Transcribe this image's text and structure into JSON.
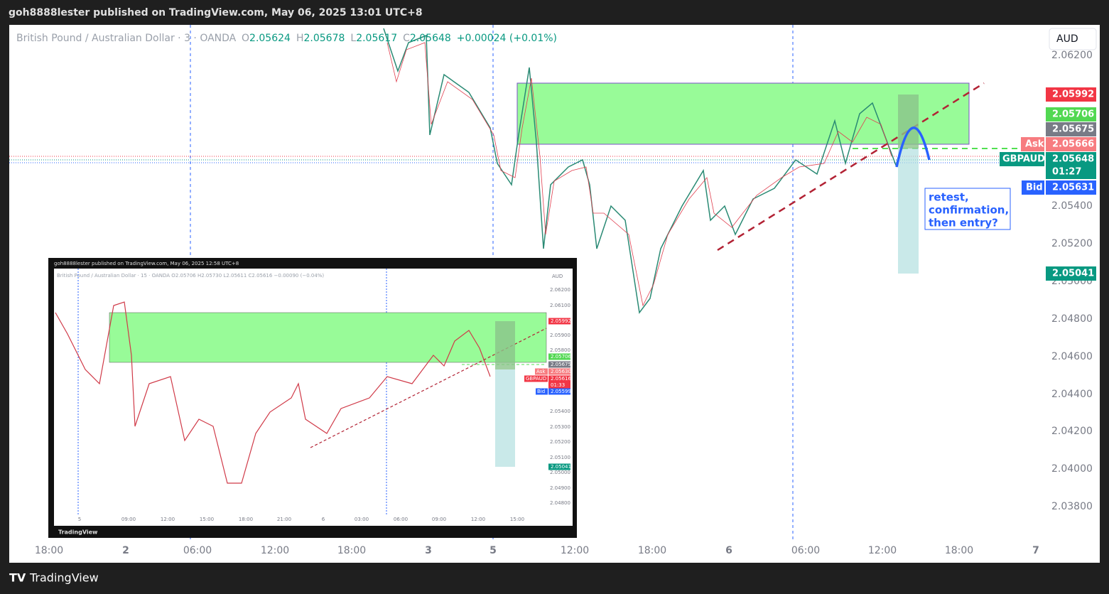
{
  "header": {
    "publisher": "goh8888lester published on TradingView.com, May 06, 2025 13:01 UTC+8"
  },
  "legend": {
    "symbol": "British Pound / Australian Dollar · 3 · OANDA",
    "open_label": "O",
    "open": "2.05624",
    "high_label": "H",
    "high": "2.05678",
    "low_label": "L",
    "low": "2.05617",
    "close_label": "C",
    "close": "2.05648",
    "change": "+0.00024 (+0.01%)"
  },
  "currency": "AUD",
  "price_axis": [
    "2.06200",
    "2.05400",
    "2.05200",
    "2.05000",
    "2.04800",
    "2.04600",
    "2.04400",
    "2.04200",
    "2.04000",
    "2.03800"
  ],
  "time_axis": [
    "18:00",
    "2",
    "06:00",
    "12:00",
    "18:00",
    "3",
    "5",
    "12:00",
    "18:00",
    "6",
    "06:00",
    "12:00",
    "18:00",
    "7"
  ],
  "price_tags": {
    "target": "2.05992",
    "zone": "2.05706",
    "level": "2.05675",
    "ask_label": "Ask",
    "ask": "2.05666",
    "symbol_label": "GBPAUD",
    "last": "2.05648",
    "countdown": "01:27",
    "bid_label": "Bid",
    "bid": "2.05631",
    "stop": "2.05041"
  },
  "annotation": {
    "lines": [
      "retest,",
      "confirmation,",
      "then entry?"
    ]
  },
  "inset": {
    "publisher": "goh8888lester published on TradingView.com, May 06, 2025 12:58 UTC+8",
    "legend": "British Pound / Australian Dollar · 15 · OANDA  O2.05706  H2.05730  L2.05611  C2.05616  −0.00090 (−0.04%)",
    "currency": "AUD",
    "price_axis": [
      "2.06200",
      "2.06100",
      "2.05900",
      "2.05800",
      "2.05400",
      "2.05300",
      "2.05200",
      "2.05100",
      "2.05000",
      "2.04900",
      "2.04800"
    ],
    "time_axis": [
      "5",
      "09:00",
      "12:00",
      "15:00",
      "18:00",
      "21:00",
      "6",
      "03:00",
      "06:00",
      "09:00",
      "12:00",
      "15:00"
    ],
    "price_tags": {
      "target": "2.05992",
      "zone": "2.05706",
      "level": "2.05675",
      "ask_label": "Ask",
      "ask": "2.05630",
      "symbol_label": "GBPAUD",
      "last": "2.05616",
      "countdown": "01:33",
      "bid_label": "Bid",
      "bid": "2.05599",
      "stop": "2.05041"
    },
    "brand": "TradingView"
  },
  "footer": {
    "brand": "TradingView"
  }
}
